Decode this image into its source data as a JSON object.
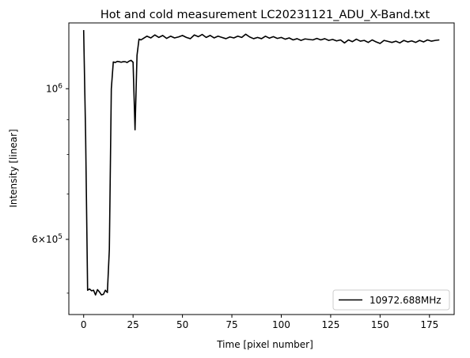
{
  "chart_data": {
    "type": "line",
    "title": "Hot and cold measurement LC20231121_ADU_X-Band.txt",
    "xlabel": "Time [pixel number]",
    "ylabel": "Intensity [linear]",
    "yscale": "log",
    "xlim": [
      -7.5,
      187.5
    ],
    "ylim": [
      465000,
      1250000
    ],
    "x_ticks": [
      0,
      25,
      50,
      75,
      100,
      125,
      150,
      175
    ],
    "x_tick_labels": [
      "0",
      "25",
      "50",
      "75",
      "100",
      "125",
      "150",
      "175"
    ],
    "y_major_ticks": [
      1000000,
      600000
    ],
    "y_major_tick_labels": [
      "10^6",
      "6×10^5"
    ],
    "y_minor_ticks": [
      500000,
      700000,
      800000,
      900000
    ],
    "legend_position": "lower right",
    "grid": false,
    "series": [
      {
        "name": "10972.688MHz",
        "color": "#000000",
        "x": [
          0,
          1,
          2,
          3,
          4,
          5,
          6,
          7,
          8,
          9,
          10,
          11,
          12,
          13,
          14,
          15,
          16,
          17,
          18,
          19,
          20,
          21,
          22,
          23,
          24,
          25,
          26,
          27,
          28,
          29,
          30,
          32,
          34,
          36,
          38,
          40,
          42,
          44,
          46,
          48,
          50,
          52,
          54,
          56,
          58,
          60,
          62,
          64,
          66,
          68,
          70,
          72,
          74,
          76,
          78,
          80,
          82,
          84,
          86,
          88,
          90,
          92,
          94,
          96,
          98,
          100,
          102,
          104,
          106,
          108,
          110,
          112,
          114,
          116,
          118,
          120,
          122,
          124,
          126,
          128,
          130,
          132,
          134,
          136,
          138,
          140,
          142,
          144,
          146,
          148,
          150,
          152,
          154,
          156,
          158,
          160,
          162,
          164,
          166,
          168,
          170,
          172,
          174,
          176,
          178,
          180
        ],
        "y": [
          1220000,
          850000,
          505000,
          507000,
          504000,
          505000,
          497000,
          506000,
          502000,
          497000,
          498000,
          505000,
          501000,
          580000,
          1000000,
          1095000,
          1093000,
          1097000,
          1096000,
          1094000,
          1096000,
          1096000,
          1093000,
          1098000,
          1101000,
          1094000,
          870000,
          1120000,
          1183000,
          1180000,
          1185000,
          1195000,
          1188000,
          1200000,
          1190000,
          1198000,
          1186000,
          1195000,
          1188000,
          1192000,
          1198000,
          1190000,
          1185000,
          1200000,
          1193000,
          1202000,
          1190000,
          1198000,
          1188000,
          1195000,
          1190000,
          1185000,
          1192000,
          1188000,
          1195000,
          1190000,
          1203000,
          1192000,
          1185000,
          1190000,
          1185000,
          1195000,
          1187000,
          1193000,
          1186000,
          1190000,
          1183000,
          1188000,
          1180000,
          1185000,
          1178000,
          1184000,
          1182000,
          1180000,
          1186000,
          1180000,
          1185000,
          1178000,
          1182000,
          1176000,
          1180000,
          1168000,
          1180000,
          1173000,
          1183000,
          1175000,
          1178000,
          1170000,
          1180000,
          1172000,
          1166000,
          1178000,
          1174000,
          1170000,
          1175000,
          1168000,
          1178000,
          1172000,
          1176000,
          1170000,
          1178000,
          1172000,
          1180000,
          1175000,
          1178000,
          1180000
        ]
      }
    ]
  }
}
